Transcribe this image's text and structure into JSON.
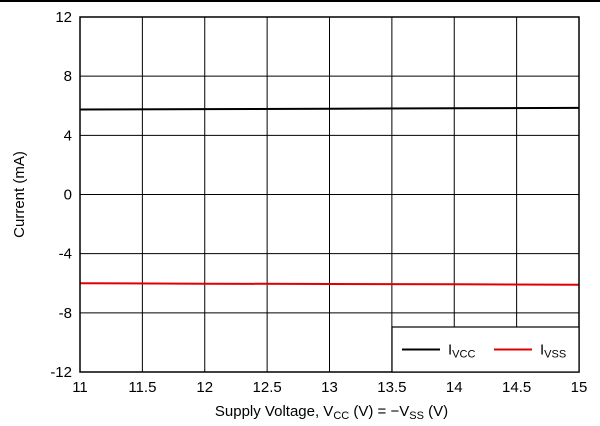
{
  "chart_data": {
    "type": "line",
    "xlabel": {
      "prefix": "Supply Voltage, V",
      "sub1": "CC",
      "mid": " (V) = −V",
      "sub2": "SS",
      "suffix": " (V)"
    },
    "ylabel": "Current (mA)",
    "xlim": [
      11,
      15
    ],
    "ylim": [
      -12,
      12
    ],
    "xticks": [
      11,
      11.5,
      12,
      12.5,
      13,
      13.5,
      14,
      14.5,
      15
    ],
    "yticks": [
      -12,
      -8,
      -4,
      0,
      4,
      8,
      12
    ],
    "xtick_labels": [
      "11",
      "11.5",
      "12",
      "12.5",
      "13",
      "13.5",
      "14",
      "14.5",
      "15"
    ],
    "ytick_labels": [
      "-12",
      "-8",
      "-4",
      "0",
      "4",
      "8",
      "12"
    ],
    "grid": true,
    "legend_position": "bottom-right",
    "series": [
      {
        "name": "I",
        "name_sub": "VCC",
        "color": "#000000",
        "x": [
          11,
          12,
          13,
          14,
          15
        ],
        "y": [
          5.75,
          5.77,
          5.8,
          5.83,
          5.86
        ]
      },
      {
        "name": "I",
        "name_sub": "VSS",
        "color": "#e00000",
        "x": [
          11,
          12,
          13,
          14,
          15
        ],
        "y": [
          -6.0,
          -6.03,
          -6.05,
          -6.07,
          -6.1
        ]
      }
    ]
  }
}
